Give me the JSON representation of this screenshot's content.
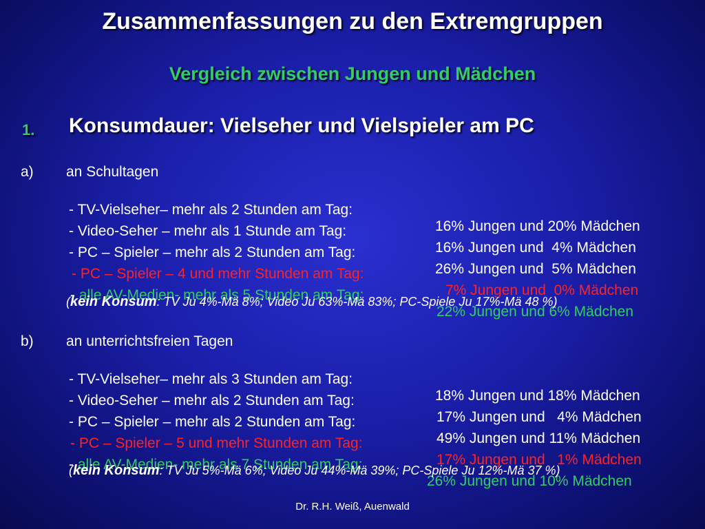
{
  "title": "Zusammenfassungen zu den Extremgruppen",
  "subtitle": "Vergleich zwischen Jungen und Mädchen",
  "section": {
    "number": "1.",
    "heading": "Konsumdauer: Vielseher und Vielspieler am PC"
  },
  "groups": [
    {
      "marker": "a)",
      "title": "an Schultagen",
      "rows": [
        {
          "prefix": "- ",
          "label": "TV-Vielseher– mehr als 2 Stunden am Tag:",
          "value": "16% Jungen und 20% Mädchen"
        },
        {
          "prefix": "- ",
          "label": "Video-Seher – mehr als 1 Stunde am Tag:",
          "value": "16% Jungen und  4% Mädchen"
        },
        {
          "prefix": "- ",
          "label": "PC – Spieler – mehr als 2 Stunden am Tag:",
          "value": "26% Jungen und  5% Mädchen"
        },
        {
          "prefix": "- ",
          "label": "PC – Spieler – 4 und mehr Stunden am Tag:",
          "value": "7% Jungen und  0% Mädchen"
        },
        {
          "prefix": "- ",
          "label": "alle AV-Medien- mehr als 5 Stunden am Tag:",
          "value": "22% Jungen und 6% Mädchen"
        }
      ],
      "note": {
        "open": "(",
        "bold": "kein Konsum",
        "rest": ": TV Ju 4%-Mä 8%; Video Ju 63%-Mä 83%; PC-Spiele Ju 17%-Mä 48 %)"
      }
    },
    {
      "marker": "b)",
      "title": "an unterrichtsfreien Tagen",
      "rows": [
        {
          "prefix": "- ",
          "label": "TV-Vielseher– mehr als 3 Stunden am Tag:",
          "value": "18% Jungen und 18% Mädchen"
        },
        {
          "prefix": "- ",
          "label": "Video-Seher – mehr als 2 Stunden am Tag:",
          "value": "17% Jungen und   4% Mädchen"
        },
        {
          "prefix": "- ",
          "label": "PC – Spieler – mehr als 2 Stunden am Tag:",
          "value": "49% Jungen und 11% Mädchen"
        },
        {
          "prefix": "- ",
          "label": "PC – Spieler – 5 und mehr Stunden am Tag:",
          "value": "17% Jungen und   1% Mädchen"
        },
        {
          "prefix": "- ",
          "label": "alle AV-Medien- mehr als 7 Stunden am Tag:",
          "value": "26% Jungen und 10% Mädchen"
        }
      ],
      "note": {
        "open": "(",
        "bold": "kein Konsum",
        "rest": ": TV Ju 5%-Mä 6%; Video Ju 44%-Mä 39%; PC-Spiele Ju 12%-Mä 37 %)"
      }
    }
  ],
  "colors": {
    "heading_green": "#33cc66",
    "highlight_red": "#ff2222",
    "all_media_green": "#33cc66"
  },
  "footer": "Dr. R.H. Weiß, Auenwald"
}
